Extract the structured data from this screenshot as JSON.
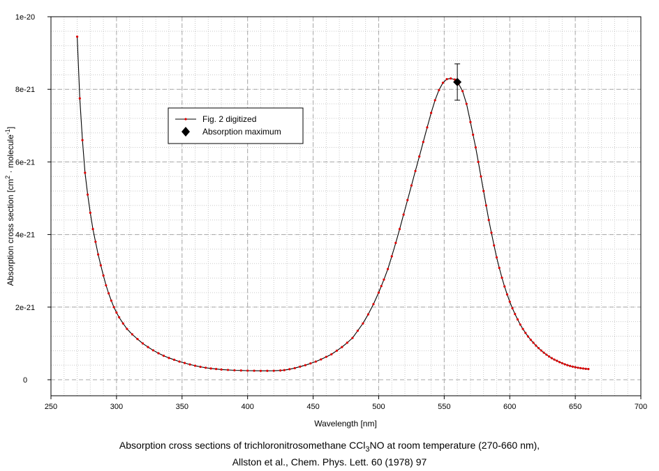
{
  "chart_data": {
    "type": "line",
    "xlabel": "Wavelength [nm]",
    "ylabel": {
      "prefix": "Absorption cross section [cm",
      "sup1": "2",
      "middle": " · molecule",
      "sup2": "-1",
      "suffix": "]"
    },
    "xlim": [
      250,
      700
    ],
    "ylim": [
      0,
      1e-20
    ],
    "x_ticks": [
      250,
      300,
      350,
      400,
      450,
      500,
      550,
      600,
      650,
      700
    ],
    "x_tick_labels": [
      "250",
      "300",
      "350",
      "400",
      "450",
      "500",
      "550",
      "600",
      "650",
      "700"
    ],
    "y_ticks": [
      0,
      2e-21,
      4e-21,
      6e-21,
      8e-21,
      1e-20
    ],
    "y_tick_labels": [
      "0",
      "2e-21",
      "4e-21",
      "6e-21",
      "8e-21",
      "1e-20"
    ],
    "grid": true,
    "legend_position": "upper-left",
    "series": [
      {
        "name": "Fig. 2 digitized",
        "line_color": "#000000",
        "marker_color": "#e00000",
        "x": [
          270,
          272,
          274,
          276,
          278,
          280,
          282,
          284,
          286,
          288,
          290,
          292,
          294,
          296,
          298,
          300,
          302,
          305,
          308,
          312,
          316,
          320,
          324,
          328,
          332,
          336,
          340,
          344,
          348,
          352,
          356,
          360,
          364,
          368,
          372,
          376,
          380,
          385,
          390,
          395,
          400,
          405,
          410,
          415,
          420,
          425,
          428,
          432,
          436,
          440,
          444,
          448,
          452,
          456,
          460,
          464,
          468,
          472,
          476,
          480,
          484,
          488,
          492,
          496,
          500,
          502,
          504,
          507,
          510,
          513,
          516,
          519,
          522,
          525,
          528,
          531,
          534,
          537,
          540,
          543,
          546,
          549,
          552,
          555,
          558,
          561,
          564,
          567,
          570,
          572,
          574,
          576,
          578,
          580,
          582,
          584,
          586,
          588,
          590,
          592,
          594,
          596,
          598,
          600,
          602,
          604,
          606,
          608,
          610,
          612,
          614,
          616,
          618,
          620,
          622,
          624,
          626,
          628,
          630,
          632,
          634,
          636,
          638,
          640,
          642,
          644,
          646,
          648,
          650,
          652,
          654,
          656,
          658,
          660
        ],
        "y": [
          9.45e-21,
          7.75e-21,
          6.6e-21,
          5.7e-21,
          5.1e-21,
          4.6e-21,
          4.15e-21,
          3.8e-21,
          3.45e-21,
          3.15e-21,
          2.87e-21,
          2.6e-21,
          2.38e-21,
          2.18e-21,
          2e-21,
          1.85e-21,
          1.72e-21,
          1.55e-21,
          1.4e-21,
          1.25e-21,
          1.12e-21,
          1e-21,
          9e-22,
          8.1e-22,
          7.3e-22,
          6.6e-22,
          6e-22,
          5.5e-22,
          5e-22,
          4.6e-22,
          4.2e-22,
          3.85e-22,
          3.55e-22,
          3.3e-22,
          3.1e-22,
          2.95e-22,
          2.8e-22,
          2.7e-22,
          2.6e-22,
          2.55e-22,
          2.5e-22,
          2.48e-22,
          2.45e-22,
          2.45e-22,
          2.47e-22,
          2.55e-22,
          2.65e-22,
          2.9e-22,
          3.2e-22,
          3.6e-22,
          4e-22,
          4.5e-22,
          5e-22,
          5.6e-22,
          6.3e-22,
          7e-22,
          8e-22,
          9e-22,
          1.02e-21,
          1.15e-21,
          1.35e-21,
          1.55e-21,
          1.8e-21,
          2.08e-21,
          2.4e-21,
          2.58e-21,
          2.76e-21,
          3.05e-21,
          3.4e-21,
          3.77e-21,
          4.15e-21,
          4.55e-21,
          4.95e-21,
          5.35e-21,
          5.75e-21,
          6.15e-21,
          6.55e-21,
          6.95e-21,
          7.35e-21,
          7.7e-21,
          7.98e-21,
          8.18e-21,
          8.28e-21,
          8.3e-21,
          8.27e-21,
          8.15e-21,
          7.95e-21,
          7.6e-21,
          7.1e-21,
          6.75e-21,
          6.4e-21,
          6e-21,
          5.6e-21,
          5.2e-21,
          4.8e-21,
          4.4e-21,
          4.05e-21,
          3.7e-21,
          3.37e-21,
          3.08e-21,
          2.81e-21,
          2.57e-21,
          2.35e-21,
          2.15e-21,
          1.97e-21,
          1.81e-21,
          1.66e-21,
          1.52e-21,
          1.4e-21,
          1.29e-21,
          1.19e-21,
          1.1e-21,
          1.02e-21,
          9.4e-22,
          8.7e-22,
          8.05e-22,
          7.45e-22,
          6.9e-22,
          6.4e-22,
          5.95e-22,
          5.55e-22,
          5.2e-22,
          4.85e-22,
          4.55e-22,
          4.25e-22,
          4e-22,
          3.8e-22,
          3.6e-22,
          3.45e-22,
          3.3e-22,
          3.2e-22,
          3.1e-22,
          3e-22,
          2.95e-22
        ]
      },
      {
        "name": "Absorption maximum",
        "marker": "diamond",
        "color": "#000000",
        "x": [
          560
        ],
        "y": [
          8.2e-21
        ],
        "error": [
          5e-22
        ]
      }
    ]
  },
  "caption": {
    "line1_prefix": "Absorption cross sections of trichloronitrosomethane CCl",
    "line1_sub": "3",
    "line1_suffix": "NO  at room temperature (270-660 nm),",
    "line2": "Allston et al.,  Chem. Phys. Lett. 60 (1978) 97"
  }
}
